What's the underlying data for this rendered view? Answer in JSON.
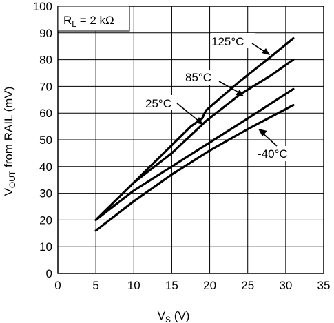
{
  "chart_data": {
    "type": "line",
    "xlabel_main": "V",
    "xlabel_sub": "S",
    "xlabel_unit": " (V)",
    "ylabel_main": "V",
    "ylabel_sub": "OUT",
    "ylabel_rest": " from RAIL (mV)",
    "xlim": [
      0,
      35
    ],
    "ylim": [
      0,
      100
    ],
    "xticks": [
      0,
      5,
      10,
      15,
      20,
      25,
      30,
      35
    ],
    "yticks": [
      0,
      10,
      20,
      30,
      40,
      50,
      60,
      70,
      80,
      90,
      100
    ],
    "grid": true,
    "condition_main": "R",
    "condition_sub": "L",
    "condition_rest": " = 2 kΩ",
    "series": [
      {
        "name": "125°C",
        "x": [
          5,
          10,
          15,
          17.5,
          19,
          19.5,
          24,
          28,
          31
        ],
        "y": [
          20,
          34,
          48,
          55,
          58,
          61,
          72,
          81,
          88
        ]
      },
      {
        "name": "85°C",
        "x": [
          5,
          10,
          15,
          19.5,
          24,
          28,
          31
        ],
        "y": [
          20,
          34,
          45,
          57,
          67,
          74,
          80
        ]
      },
      {
        "name": "25°C",
        "x": [
          5,
          10,
          15,
          20,
          25,
          31
        ],
        "y": [
          20,
          31,
          40,
          49,
          58,
          69
        ]
      },
      {
        "name": "-40°C",
        "x": [
          5,
          10,
          15,
          20,
          25,
          31
        ],
        "y": [
          16,
          27,
          37,
          46,
          54,
          63
        ]
      }
    ]
  }
}
